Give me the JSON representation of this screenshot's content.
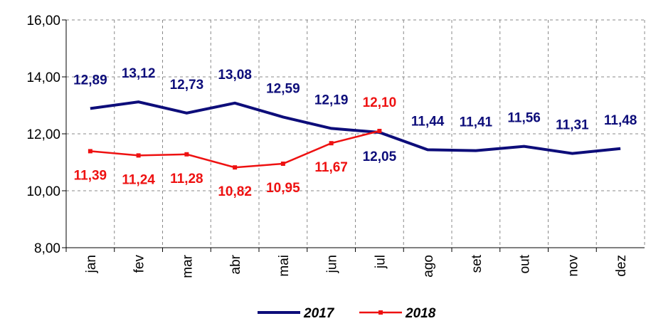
{
  "chart_data": {
    "type": "line",
    "categories": [
      "jan",
      "fev",
      "mar",
      "abr",
      "mai",
      "jun",
      "jul",
      "ago",
      "set",
      "out",
      "nov",
      "dez"
    ],
    "series": [
      {
        "name": "2017",
        "color": "#0d0d7a",
        "values": [
          12.89,
          13.12,
          12.73,
          13.08,
          12.59,
          12.19,
          12.05,
          11.44,
          11.41,
          11.56,
          11.31,
          11.48
        ],
        "value_labels": [
          "12,89",
          "13,12",
          "12,73",
          "13,08",
          "12,59",
          "12,19",
          "12,05",
          "11,44",
          "11,41",
          "11,56",
          "11,31",
          "11,48"
        ]
      },
      {
        "name": "2018",
        "color": "#ee1111",
        "values": [
          11.39,
          11.24,
          11.28,
          10.82,
          10.95,
          11.67,
          12.1,
          null,
          null,
          null,
          null,
          null
        ],
        "value_labels": [
          "11,39",
          "11,24",
          "11,28",
          "10,82",
          "10,95",
          "11,67",
          "12,10",
          null,
          null,
          null,
          null,
          null
        ]
      }
    ],
    "ylim": [
      8,
      16
    ],
    "yticks": [
      {
        "value": 8,
        "label": "8,00"
      },
      {
        "value": 10,
        "label": "10,00"
      },
      {
        "value": 12,
        "label": "12,00"
      },
      {
        "value": 14,
        "label": "14,00"
      },
      {
        "value": 16,
        "label": "16,00"
      }
    ],
    "grid": true,
    "legend": "bottom"
  }
}
